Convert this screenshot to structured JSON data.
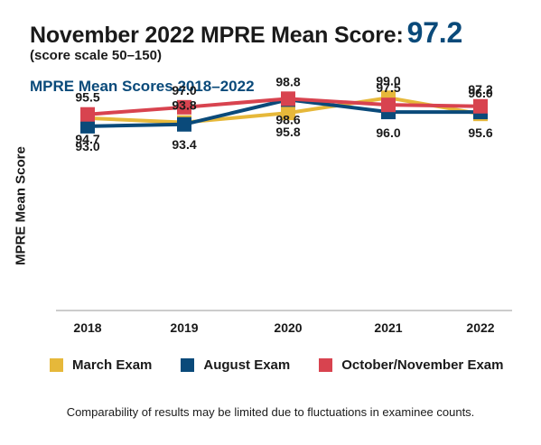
{
  "header": {
    "title_prefix": "November 2022 MPRE Mean Score:",
    "title_score": "97.2",
    "subtitle": "(score scale 50–150)"
  },
  "footnote": "Comparability of results may be limited due to fluctuations in examinee counts.",
  "chart_data": {
    "type": "line",
    "title": "MPRE Mean Scores 2018–2022",
    "xlabel": "",
    "ylabel": "MPRE Mean Score",
    "categories": [
      "2018",
      "2019",
      "2020",
      "2021",
      "2022"
    ],
    "ylim": [
      92,
      100
    ],
    "grid": false,
    "legend": "bottom",
    "series": [
      {
        "name": "March Exam",
        "color": "#e6b83a",
        "values": [
          94.7,
          93.8,
          95.8,
          99.0,
          95.6
        ]
      },
      {
        "name": "August Exam",
        "color": "#0a4a7a",
        "values": [
          93.0,
          93.4,
          98.6,
          96.0,
          96.0
        ]
      },
      {
        "name": "October/November Exam",
        "color": "#d8434f",
        "values": [
          95.5,
          97.0,
          98.8,
          97.5,
          97.2
        ]
      }
    ]
  }
}
